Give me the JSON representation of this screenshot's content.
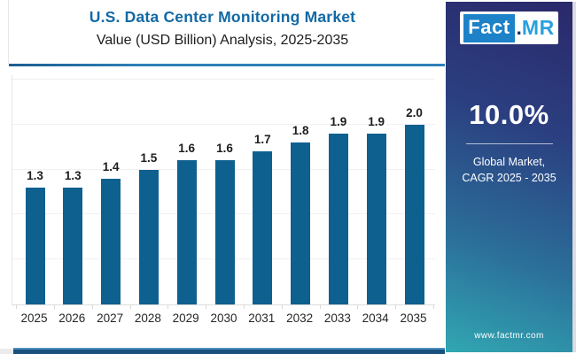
{
  "header": {
    "title": "U.S. Data Center Monitoring Market",
    "subtitle": "Value (USD Billion) Analysis, 2025-2035"
  },
  "sidebar": {
    "logo_fact": "Fact",
    "logo_dot": ".",
    "logo_mr": "MR",
    "cagr_value": "10.0%",
    "market_line1": "Global Market,",
    "market_line2": "CAGR 2025 - 2035",
    "website": "www.factmr.com"
  },
  "colors": {
    "bar": "#0e608f",
    "title": "#1269a5",
    "header_rule": "#2f80b8",
    "sidebar_gradient_top": "#2a2a6c",
    "sidebar_gradient_bottom": "#31a7b2",
    "logo_fact_bg": "#1e82c8",
    "logo_mr_text": "#2aa0dd",
    "bottom_strip": "#17517c"
  },
  "chart_data": {
    "type": "bar",
    "title": "U.S. Data Center Monitoring Market Value (USD Billion) Analysis, 2025-2035",
    "categories": [
      "2025",
      "2026",
      "2027",
      "2028",
      "2029",
      "2030",
      "2031",
      "2032",
      "2033",
      "2034",
      "2035"
    ],
    "values": [
      1.3,
      1.3,
      1.4,
      1.5,
      1.6,
      1.6,
      1.7,
      1.8,
      1.9,
      1.9,
      2.0
    ],
    "xlabel": "",
    "ylabel": "Value (USD Billion)",
    "ylim": [
      0,
      2.55
    ],
    "grid_step": 0.5,
    "grid": true,
    "legend": false,
    "data_labels": true
  }
}
